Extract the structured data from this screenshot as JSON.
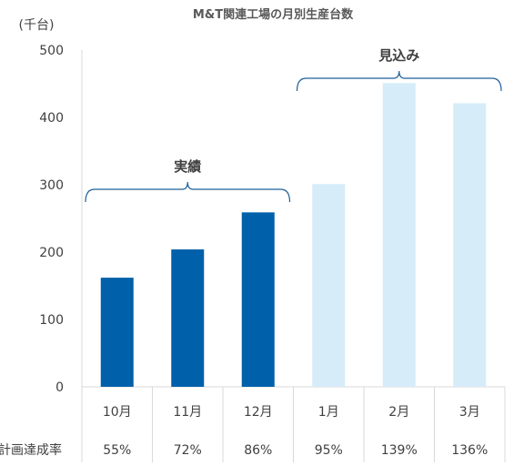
{
  "chart_data": {
    "type": "bar",
    "title": "M&T関連工場の月別生産台数",
    "ylabel": "(千台)",
    "xlabel": "",
    "ylim": [
      0,
      500
    ],
    "yticks": [
      "0",
      "100",
      "200",
      "300",
      "400",
      "500"
    ],
    "grid": false,
    "categories": [
      "10月",
      "11月",
      "12月",
      "1月",
      "2月",
      "3月"
    ],
    "values": [
      162,
      204,
      259,
      301,
      451,
      421
    ],
    "colors": {
      "actual": "#0060AA",
      "forecast": "#D6ECF9",
      "bracket": "#1F5F99",
      "axis": "#D9D9D9"
    },
    "series_kind": [
      "actual",
      "actual",
      "actual",
      "forecast",
      "forecast",
      "forecast"
    ],
    "groups": [
      {
        "label": "実績",
        "from": 0,
        "to": 2
      },
      {
        "label": "見込み",
        "from": 3,
        "to": 5
      }
    ],
    "table": {
      "row_label": "計画達成率",
      "values": [
        "55%",
        "72%",
        "86%",
        "95%",
        "139%",
        "136%"
      ]
    }
  }
}
